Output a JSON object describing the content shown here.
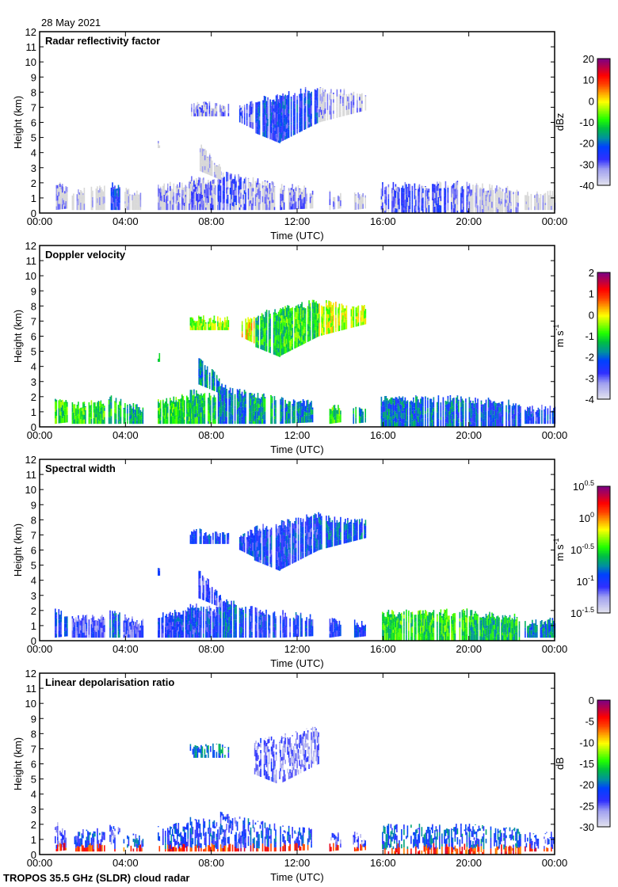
{
  "date_label": "28 May 2021",
  "footer_label": "TROPOS 35.5 GHz (SLDR) cloud radar",
  "chart_data": [
    {
      "type": "heatmap",
      "title": "Radar reflectivity factor",
      "xlabel": "Time (UTC)",
      "ylabel": "Height (km)",
      "xlim": [
        0,
        24
      ],
      "ylim": [
        0,
        12
      ],
      "x_tick_labels": [
        "00:00",
        "04:00",
        "08:00",
        "12:00",
        "16:00",
        "20:00",
        "00:00"
      ],
      "y_tick_labels": [
        "0",
        "1",
        "2",
        "3",
        "4",
        "5",
        "6",
        "7",
        "8",
        "9",
        "10",
        "11",
        "12"
      ],
      "colorbar": {
        "unit": "dBz",
        "unit_sup": "",
        "scale": "linear",
        "range": [
          -40,
          20
        ],
        "tick_labels": [
          {
            "base": "20",
            "exp": ""
          },
          {
            "base": "10",
            "exp": ""
          },
          {
            "base": "0",
            "exp": ""
          },
          {
            "base": "-10",
            "exp": ""
          },
          {
            "base": "-20",
            "exp": ""
          },
          {
            "base": "-30",
            "exp": ""
          },
          {
            "base": "-40",
            "exp": ""
          }
        ]
      }
    },
    {
      "type": "heatmap",
      "title": "Doppler velocity",
      "xlabel": "Time (UTC)",
      "ylabel": "Height (km)",
      "xlim": [
        0,
        24
      ],
      "ylim": [
        0,
        12
      ],
      "x_tick_labels": [
        "00:00",
        "04:00",
        "08:00",
        "12:00",
        "16:00",
        "20:00",
        "00:00"
      ],
      "y_tick_labels": [
        "0",
        "1",
        "2",
        "3",
        "4",
        "5",
        "6",
        "7",
        "8",
        "9",
        "10",
        "11",
        "12"
      ],
      "colorbar": {
        "unit": "m s",
        "unit_sup": "-1",
        "scale": "linear",
        "range": [
          -4,
          2
        ],
        "tick_labels": [
          {
            "base": "2",
            "exp": ""
          },
          {
            "base": "1",
            "exp": ""
          },
          {
            "base": "0",
            "exp": ""
          },
          {
            "base": "-1",
            "exp": ""
          },
          {
            "base": "-2",
            "exp": ""
          },
          {
            "base": "-3",
            "exp": ""
          },
          {
            "base": "-4",
            "exp": ""
          }
        ]
      }
    },
    {
      "type": "heatmap",
      "title": "Spectral width",
      "xlabel": "Time (UTC)",
      "ylabel": "Height (km)",
      "xlim": [
        0,
        24
      ],
      "ylim": [
        0,
        12
      ],
      "x_tick_labels": [
        "00:00",
        "04:00",
        "08:00",
        "12:00",
        "16:00",
        "20:00",
        "00:00"
      ],
      "y_tick_labels": [
        "0",
        "1",
        "2",
        "3",
        "4",
        "5",
        "6",
        "7",
        "8",
        "9",
        "10",
        "11",
        "12"
      ],
      "colorbar": {
        "unit": "m s",
        "unit_sup": "-1",
        "scale": "log",
        "range": [
          -1.5,
          0.5
        ],
        "tick_labels": [
          {
            "base": "10",
            "exp": "0.5"
          },
          {
            "base": "10",
            "exp": "0"
          },
          {
            "base": "10",
            "exp": "-0.5"
          },
          {
            "base": "10",
            "exp": "-1"
          },
          {
            "base": "10",
            "exp": "-1.5"
          }
        ]
      }
    },
    {
      "type": "heatmap",
      "title": "Linear depolarisation ratio",
      "xlabel": "Time (UTC)",
      "ylabel": "Height (km)",
      "xlim": [
        0,
        24
      ],
      "ylim": [
        0,
        12
      ],
      "x_tick_labels": [
        "00:00",
        "04:00",
        "08:00",
        "12:00",
        "16:00",
        "20:00",
        "00:00"
      ],
      "y_tick_labels": [
        "0",
        "1",
        "2",
        "3",
        "4",
        "5",
        "6",
        "7",
        "8",
        "9",
        "10",
        "11",
        "12"
      ],
      "colorbar": {
        "unit": "dB",
        "unit_sup": "",
        "scale": "linear",
        "range": [
          -30,
          0
        ],
        "tick_labels": [
          {
            "base": "0",
            "exp": ""
          },
          {
            "base": "-5",
            "exp": ""
          },
          {
            "base": "-10",
            "exp": ""
          },
          {
            "base": "-15",
            "exp": ""
          },
          {
            "base": "-20",
            "exp": ""
          },
          {
            "base": "-25",
            "exp": ""
          },
          {
            "base": "-30",
            "exp": ""
          }
        ]
      }
    }
  ],
  "echo_regions": {
    "fields": [
      "time_start_h",
      "time_end_h",
      "base_start_km",
      "base_end_km",
      "top_start_km",
      "top_end_km",
      "reflectivity_dBz",
      "velocity_m_s",
      "width_log10",
      "ldr_dB"
    ],
    "rows": [
      [
        0.7,
        1.3,
        0.2,
        0.3,
        2.0,
        1.5,
        -35,
        -1.0,
        -1.0,
        -25
      ],
      [
        1.5,
        3.0,
        0.2,
        0.2,
        1.4,
        1.6,
        -38,
        -1.0,
        -1.1,
        -22
      ],
      [
        3.2,
        3.8,
        0.2,
        0.2,
        2.0,
        1.6,
        -25,
        -1.2,
        -0.9,
        -24
      ],
      [
        3.9,
        4.8,
        0.2,
        0.2,
        1.5,
        1.2,
        -38,
        -1.5,
        -1.1,
        -22
      ],
      [
        5.5,
        7.0,
        0.2,
        0.2,
        1.7,
        2.0,
        -35,
        -1.0,
        -1.0,
        -22
      ],
      [
        7.0,
        8.3,
        0.2,
        0.2,
        2.3,
        2.0,
        -33,
        -1.3,
        -1.0,
        -22
      ],
      [
        8.3,
        9.6,
        0.2,
        0.2,
        2.7,
        2.2,
        -30,
        -2.0,
        -0.9,
        -23
      ],
      [
        9.7,
        11.0,
        0.2,
        0.2,
        2.2,
        1.8,
        -35,
        -1.5,
        -1.0,
        -22
      ],
      [
        11.2,
        12.7,
        0.2,
        0.3,
        1.8,
        1.5,
        -33,
        -1.8,
        -1.0,
        -22
      ],
      [
        13.5,
        14.0,
        0.2,
        0.3,
        1.3,
        1.2,
        -35,
        -1.0,
        -1.0,
        -25
      ],
      [
        14.6,
        15.2,
        0.2,
        0.3,
        1.3,
        1.0,
        -38,
        -1.5,
        -1.0,
        -25
      ],
      [
        15.9,
        20.0,
        0.0,
        0.0,
        1.8,
        1.9,
        -30,
        -2.0,
        -0.5,
        -21
      ],
      [
        20.0,
        22.4,
        0.0,
        0.0,
        1.8,
        1.5,
        -36,
        -2.3,
        -0.6,
        -21
      ],
      [
        22.6,
        24.0,
        0.2,
        0.2,
        1.2,
        1.3,
        -38,
        -2.5,
        -0.8,
        -23
      ],
      [
        7.0,
        8.8,
        6.4,
        6.4,
        7.2,
        7.1,
        -33,
        -0.5,
        -1.0,
        -20
      ],
      [
        9.3,
        10.0,
        6.0,
        5.5,
        7.0,
        7.2,
        -30,
        0.0,
        -1.0,
        null
      ],
      [
        10.0,
        11.2,
        5.3,
        4.6,
        7.4,
        7.7,
        -25,
        -1.3,
        -1.0,
        -25
      ],
      [
        11.2,
        13.0,
        4.7,
        6.0,
        7.7,
        8.3,
        -25,
        -1.0,
        -1.0,
        -26
      ],
      [
        13.0,
        15.2,
        6.0,
        6.8,
        8.2,
        7.8,
        -35,
        -0.3,
        -0.9,
        null
      ],
      [
        5.5,
        5.6,
        4.3,
        4.3,
        4.6,
        4.7,
        -38,
        -1.0,
        -1.0,
        null
      ],
      [
        7.4,
        8.4,
        2.8,
        2.2,
        4.5,
        3.0,
        -38,
        -1.8,
        -1.1,
        null
      ]
    ]
  },
  "colors": {
    "colormap": [
      "#e0e0ee",
      "#a0a0f0",
      "#3030ff",
      "#0040ff",
      "#0090a0",
      "#00c040",
      "#20ff00",
      "#a0ff00",
      "#ffff00",
      "#ffb000",
      "#ff4000",
      "#ff0000",
      "#c00040",
      "#800080"
    ],
    "low_reflectivity": "#d8d8d8"
  }
}
